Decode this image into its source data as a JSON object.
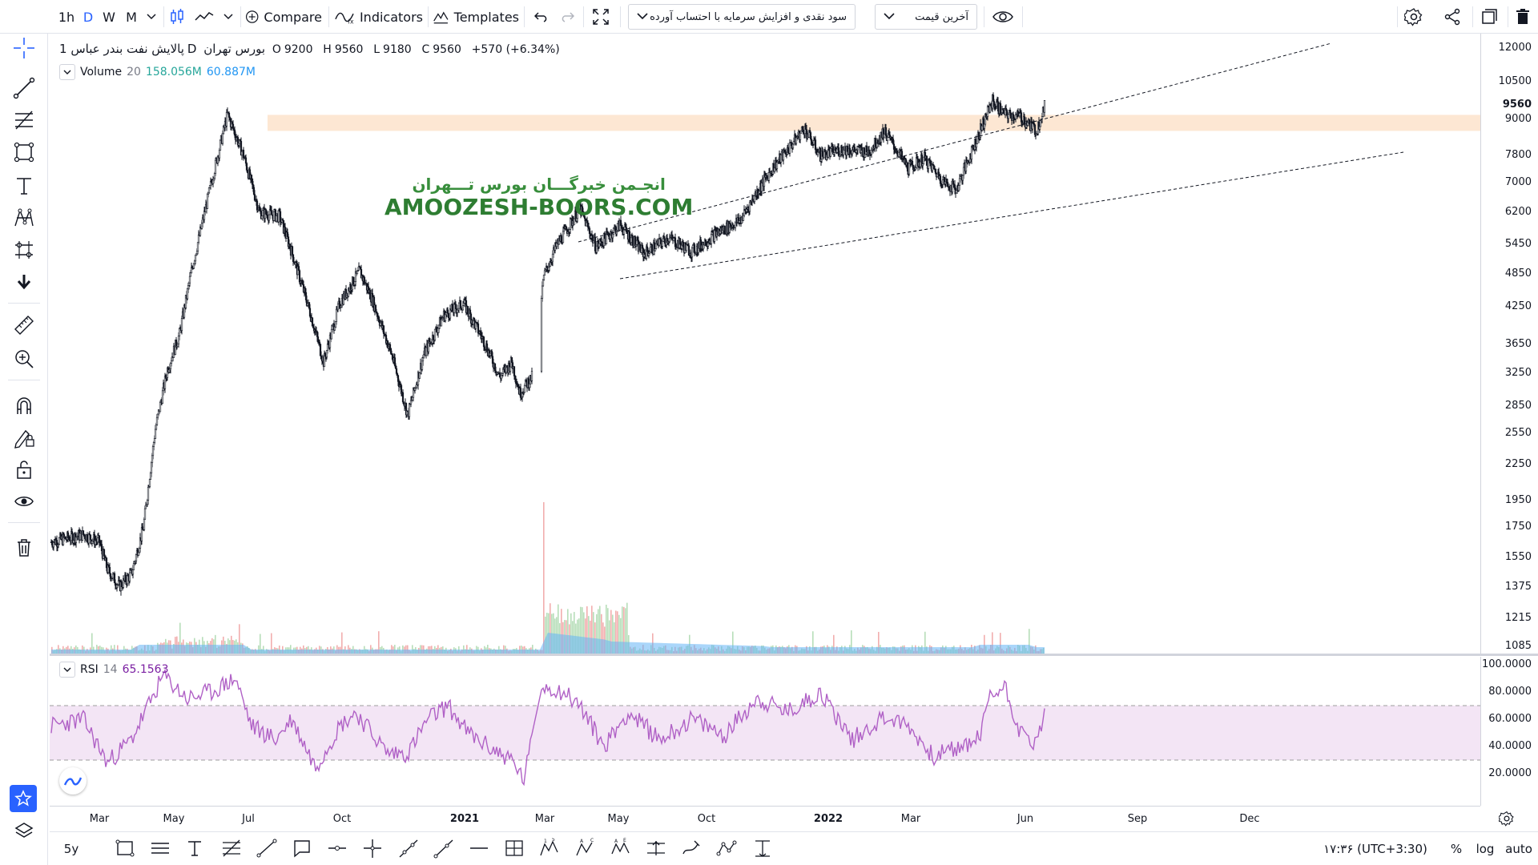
{
  "toolbar": {
    "intervals": [
      "1h",
      "D",
      "W",
      "M"
    ],
    "active_interval": "D",
    "compare_label": "Compare",
    "indicators_label": "Indicators",
    "templates_label": "Templates",
    "indicator_select": "سود نقدی و افزایش سرمایه با احتساب آورده",
    "price_type_select": "آخرین قیمت"
  },
  "legend": {
    "symbol": "پالایش نفت بندر عباس",
    "interval": "1D",
    "exchange": "بورس تهران",
    "open_label": "O",
    "open": "9200",
    "high_label": "H",
    "high": "9560",
    "low_label": "L",
    "low": "9180",
    "close_label": "C",
    "close": "9560",
    "change": "+570 (+6.34%)"
  },
  "volume_legend": {
    "name": "Volume",
    "length": "20",
    "value1": "158.056M",
    "value2": "60.887M"
  },
  "rsi_legend": {
    "name": "RSI",
    "length": "14",
    "value": "65.1563"
  },
  "watermark": {
    "persian": "انجـمن خبرگـــان بورس تـــهران",
    "english": "AMOOZESH-BOORS.COM"
  },
  "price_axis": {
    "labels": [
      "12000",
      "10500",
      "9560",
      "9000",
      "7800",
      "7000",
      "6200",
      "5450",
      "4850",
      "4250",
      "3650",
      "3250",
      "2850",
      "2550",
      "2250",
      "1950",
      "1750",
      "1550",
      "1375",
      "1215",
      "1085"
    ],
    "current": "9560"
  },
  "rsi_axis": {
    "labels": [
      "100.0000",
      "80.0000",
      "60.0000",
      "40.0000",
      "20.0000"
    ]
  },
  "time_axis": {
    "labels": [
      "Mar",
      "May",
      "Jul",
      "Oct",
      "2021",
      "Mar",
      "May",
      "Oct",
      "2022",
      "Mar",
      "Jun",
      "Sep",
      "Dec"
    ]
  },
  "bottom": {
    "range": "5y",
    "clock": "۱۷:۳۶ (UTC+3:30)",
    "percent": "%",
    "log": "log",
    "auto": "auto"
  },
  "colors": {
    "accent": "#2962ff",
    "volume_up": "#a5d6a7",
    "volume_down": "#ef9a9a",
    "volume_ma": "#64b5f6",
    "rsi_line": "#b061c6",
    "rsi_band": "#f3e5f5",
    "zone": "#fde7d3",
    "green_text": "#26a69a",
    "blue_text": "#2196f3",
    "rsi_value": "#7b1fa2"
  },
  "icons": {
    "left": [
      "crosshair-icon",
      "trend-line-icon",
      "fib-icon",
      "rectangle-icon",
      "text-icon",
      "pattern-icon",
      "prediction-icon",
      "arrow-down-icon",
      "ruler-icon",
      "zoom-in-icon",
      "magnet-icon",
      "lock-drawing-icon",
      "lock-icon",
      "eye-icon",
      "trash-icon",
      "star-icon",
      "layers-icon"
    ]
  }
}
